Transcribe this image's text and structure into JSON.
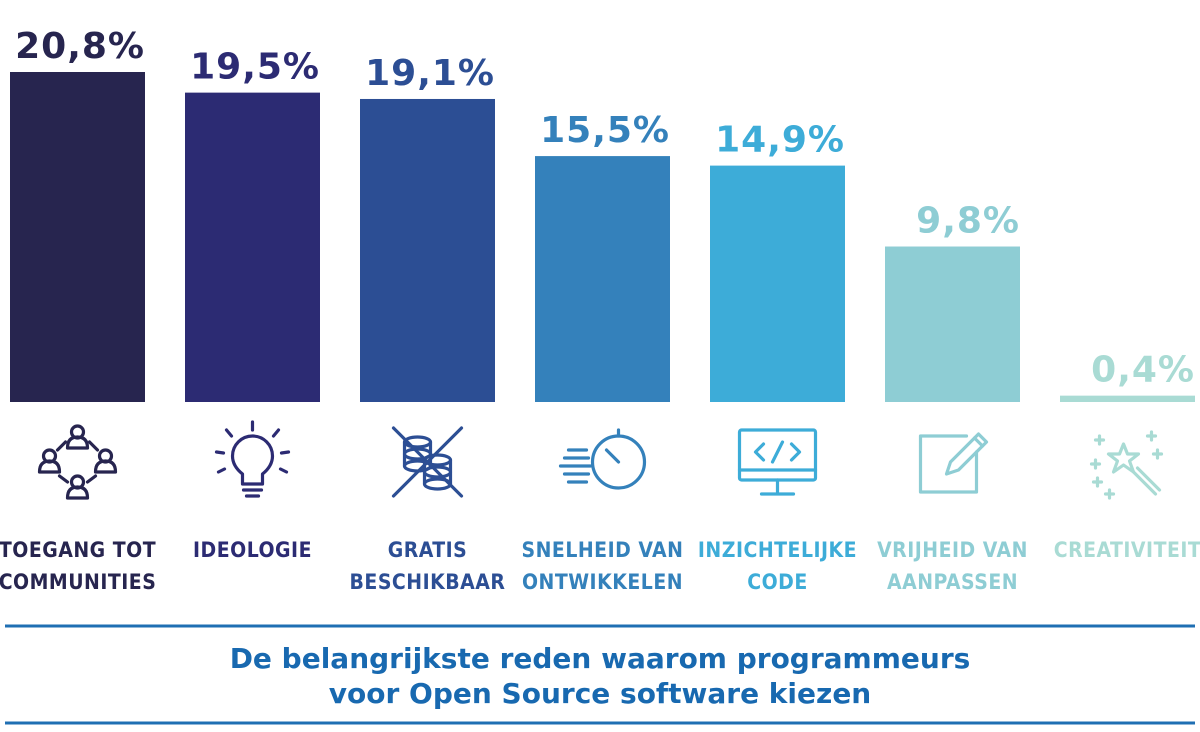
{
  "chart_data": {
    "type": "bar",
    "title": "De belangrijkste reden waarom programmeurs voor Open Source software kiezen",
    "title_lines": [
      "De belangrijkste reden waarom programmeurs",
      "voor Open Source software kiezen"
    ],
    "unit": "%",
    "ylim": [
      0,
      20.8
    ],
    "grid": false,
    "legend": "none",
    "categories": [
      {
        "label_lines": [
          "TOEGANG TOT",
          "COMMUNITIES"
        ],
        "value": 20.8,
        "value_label": "20,8%",
        "color": "#27254f",
        "icon": "community-icon"
      },
      {
        "label_lines": [
          "IDEOLOGIE"
        ],
        "value": 19.5,
        "value_label": "19,5%",
        "color": "#2c2b73",
        "icon": "lightbulb-icon"
      },
      {
        "label_lines": [
          "GRATIS",
          "BESCHIKBAAR"
        ],
        "value": 19.1,
        "value_label": "19,1%",
        "color": "#2c4e94",
        "icon": "crossed-coins-icon"
      },
      {
        "label_lines": [
          "SNELHEID VAN",
          "ONTWIKKELEN"
        ],
        "value": 15.5,
        "value_label": "15,5%",
        "color": "#3481bb",
        "icon": "speed-timer-icon"
      },
      {
        "label_lines": [
          "INZICHTELIJKE",
          "CODE"
        ],
        "value": 14.9,
        "value_label": "14,9%",
        "color": "#3dacd8",
        "icon": "code-monitor-icon"
      },
      {
        "label_lines": [
          "VRIJHEID VAN",
          "AANPASSEN"
        ],
        "value": 9.8,
        "value_label": "9,8%",
        "color": "#8ecdd4",
        "icon": "edit-square-icon"
      },
      {
        "label_lines": [
          "CREATIVITEIT"
        ],
        "value": 0.4,
        "value_label": "0,4%",
        "color": "#a9dbd4",
        "icon": "magic-wand-icon"
      }
    ],
    "divider_color": "#1f6fb3"
  }
}
